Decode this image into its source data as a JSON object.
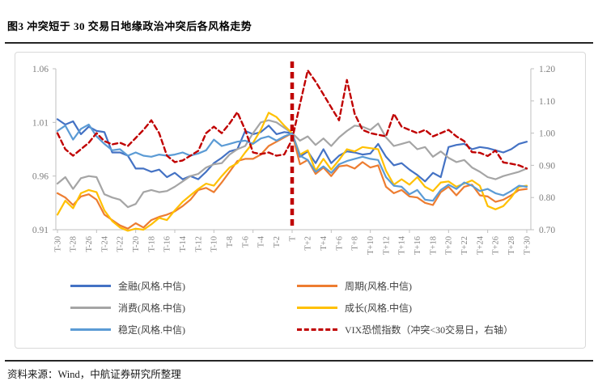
{
  "page": {
    "title": "图3  冲突短于 30 交易日地缘政治冲突后各风格走势",
    "source_note": "资料来源：Wind，中航证券研究所整理"
  },
  "chart_data": {
    "type": "line",
    "title": "",
    "x_range": [
      -30,
      30
    ],
    "x_tick_labels": [
      "T-30",
      "T-28",
      "T-26",
      "T-24",
      "T-22",
      "T-20",
      "T-18",
      "T-16",
      "T-14",
      "T-12",
      "T-10",
      "T-8",
      "T-6",
      "T-4",
      "T-2",
      "T",
      "T+2",
      "T+4",
      "T+6",
      "T+8",
      "T+10",
      "T+12",
      "T+14",
      "T+16",
      "T+18",
      "T+20",
      "T+22",
      "T+24",
      "T+26",
      "T+28",
      "T+30"
    ],
    "left_axis": {
      "range": [
        0.91,
        1.06
      ],
      "ticks": [
        0.91,
        0.96,
        1.01,
        1.06
      ]
    },
    "right_axis": {
      "range": [
        0.7,
        1.2
      ],
      "ticks": [
        0.7,
        0.8,
        0.9,
        1.0,
        1.1,
        1.2
      ]
    },
    "event_line_x": 0,
    "event_line_color": "#C00000",
    "grid": "off",
    "legend_position": "bottom",
    "series": [
      {
        "name": "金融(风格.中信)",
        "color": "#4472C4",
        "axis": "left",
        "dashed": false,
        "values": [
          1.013,
          1.008,
          1.011,
          0.999,
          1.006,
          1.002,
          1.001,
          0.982,
          0.982,
          0.979,
          0.967,
          0.967,
          0.964,
          0.966,
          0.959,
          0.963,
          0.957,
          0.96,
          0.957,
          0.964,
          0.972,
          0.977,
          0.983,
          0.985,
          1.002,
          0.999,
          1.001,
          1.007,
          0.999,
          1.001,
          1.0,
          0.978,
          0.983,
          0.972,
          0.985,
          0.972,
          0.979,
          0.983,
          0.982,
          0.98,
          0.981,
          0.99,
          0.978,
          0.97,
          0.972,
          0.966,
          0.961,
          0.955,
          0.963,
          0.959,
          0.987,
          0.989,
          0.99,
          0.985,
          0.987,
          0.986,
          0.984,
          0.982,
          0.985,
          0.99,
          0.992
        ]
      },
      {
        "name": "周期(风格.中信)",
        "color": "#ED7D31",
        "axis": "left",
        "dashed": false,
        "values": [
          0.944,
          0.94,
          0.933,
          0.941,
          0.943,
          0.938,
          0.924,
          0.919,
          0.914,
          0.911,
          0.916,
          0.912,
          0.919,
          0.922,
          0.924,
          0.927,
          0.932,
          0.938,
          0.947,
          0.949,
          0.945,
          0.954,
          0.964,
          0.974,
          0.976,
          0.976,
          0.98,
          0.988,
          0.992,
          0.996,
          1.0,
          0.971,
          0.975,
          0.962,
          0.968,
          0.96,
          0.969,
          0.97,
          0.967,
          0.973,
          0.968,
          0.97,
          0.95,
          0.944,
          0.947,
          0.941,
          0.94,
          0.935,
          0.933,
          0.945,
          0.95,
          0.942,
          0.95,
          0.952,
          0.942,
          0.941,
          0.936,
          0.938,
          0.942,
          0.947,
          0.948
        ]
      },
      {
        "name": "消费(风格.中信)",
        "color": "#A5A5A5",
        "axis": "left",
        "dashed": false,
        "values": [
          0.953,
          0.959,
          0.948,
          0.958,
          0.96,
          0.959,
          0.943,
          0.94,
          0.938,
          0.931,
          0.934,
          0.945,
          0.947,
          0.945,
          0.946,
          0.95,
          0.955,
          0.96,
          0.962,
          0.968,
          0.971,
          0.972,
          0.98,
          0.985,
          0.988,
          1.0,
          1.01,
          1.012,
          1.01,
          1.005,
          1.0,
          0.993,
          0.997,
          0.989,
          0.995,
          0.988,
          0.996,
          1.002,
          1.007,
          1.006,
          1.003,
          1.009,
          0.996,
          0.988,
          0.99,
          0.992,
          0.985,
          0.987,
          0.978,
          0.983,
          0.977,
          0.973,
          0.975,
          0.968,
          0.964,
          0.959,
          0.957,
          0.96,
          0.962,
          0.964,
          0.967
        ]
      },
      {
        "name": "成长(风格.中信)",
        "color": "#FFC000",
        "axis": "left",
        "dashed": false,
        "values": [
          0.924,
          0.937,
          0.93,
          0.944,
          0.947,
          0.945,
          0.928,
          0.918,
          0.912,
          0.909,
          0.911,
          0.91,
          0.915,
          0.921,
          0.919,
          0.928,
          0.936,
          0.942,
          0.948,
          0.953,
          0.951,
          0.96,
          0.968,
          0.972,
          0.982,
          0.991,
          1.003,
          1.019,
          1.015,
          1.007,
          1.0,
          0.98,
          0.984,
          0.965,
          0.976,
          0.966,
          0.975,
          0.985,
          0.983,
          0.987,
          0.986,
          0.985,
          0.965,
          0.952,
          0.957,
          0.952,
          0.959,
          0.95,
          0.946,
          0.954,
          0.955,
          0.95,
          0.953,
          0.956,
          0.951,
          0.932,
          0.929,
          0.932,
          0.94,
          0.95,
          0.951
        ]
      },
      {
        "name": "稳定(风格.中信)",
        "color": "#5B9BD5",
        "axis": "left",
        "dashed": false,
        "values": [
          1.002,
          1.007,
          0.994,
          1.004,
          1.008,
          0.997,
          0.99,
          0.984,
          0.985,
          0.979,
          0.982,
          0.979,
          0.978,
          0.98,
          0.979,
          0.98,
          0.982,
          0.979,
          0.981,
          0.984,
          0.994,
          0.988,
          0.99,
          0.992,
          0.993,
          0.99,
          0.995,
          0.997,
          0.993,
          0.997,
          1.0,
          0.979,
          0.975,
          0.964,
          0.969,
          0.963,
          0.971,
          0.974,
          0.976,
          0.978,
          0.976,
          0.975,
          0.959,
          0.951,
          0.95,
          0.943,
          0.947,
          0.938,
          0.937,
          0.947,
          0.952,
          0.948,
          0.954,
          0.951,
          0.946,
          0.948,
          0.944,
          0.942,
          0.946,
          0.951,
          0.95
        ]
      },
      {
        "name": "VIX恐慌指数（冲突<30交易日，右轴）",
        "color": "#C00000",
        "axis": "right",
        "dashed": true,
        "values": [
          1.0,
          0.95,
          0.93,
          0.95,
          0.97,
          1.0,
          0.975,
          0.965,
          0.97,
          0.96,
          0.985,
          1.01,
          1.04,
          1.0,
          0.93,
          0.91,
          0.915,
          0.93,
          0.945,
          1.0,
          1.02,
          1.0,
          1.03,
          1.065,
          1.01,
          0.94,
          0.935,
          0.94,
          0.93,
          0.934,
          0.98,
          1.09,
          1.195,
          1.16,
          1.12,
          1.08,
          1.04,
          1.165,
          1.06,
          1.01,
          1.0,
          0.995,
          0.99,
          1.06,
          1.02,
          1.01,
          1.0,
          1.01,
          0.99,
          1.0,
          1.01,
          0.99,
          0.975,
          0.941,
          0.939,
          0.929,
          0.946,
          0.909,
          0.905,
          0.9,
          0.89
        ]
      }
    ]
  }
}
